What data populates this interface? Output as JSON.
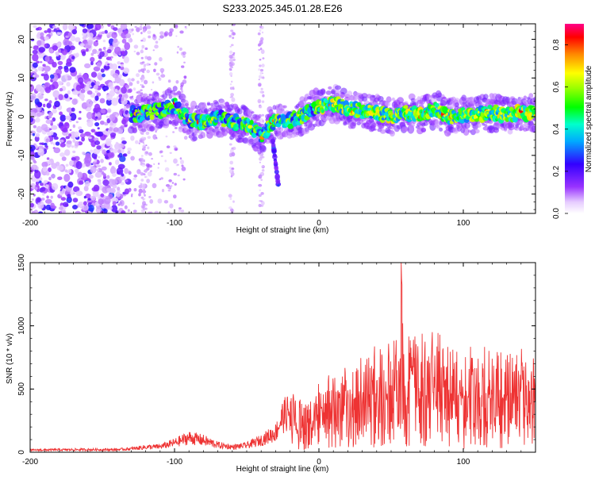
{
  "chart_data": [
    {
      "type": "heatmap",
      "title": "S233.2025.345.01.28.E26",
      "xlabel": "Height of straight line (km)",
      "ylabel": "Frequency (Hz)",
      "xlim": [
        -200,
        150
      ],
      "ylim": [
        -25,
        24
      ],
      "xticks": [
        -200,
        -100,
        0,
        100
      ],
      "yticks": [
        -20,
        -10,
        0,
        10,
        20
      ],
      "colorbar": {
        "label": "Normalized spectral amplitude",
        "range": [
          0.0,
          0.9
        ],
        "ticks": [
          0.0,
          0.2,
          0.4,
          0.6,
          0.8
        ]
      },
      "ridge": {
        "description_points_x": [
          -130,
          -110,
          -100,
          -90,
          -80,
          -70,
          -60,
          -50,
          -40,
          -30,
          -20,
          -10,
          0,
          10,
          20,
          30,
          40,
          50,
          60,
          70,
          80,
          90,
          100,
          110,
          120,
          130,
          140,
          150
        ],
        "description_points_freq": [
          0.5,
          1.5,
          3,
          -1,
          -1.5,
          0,
          -1.5,
          -2,
          -5,
          -1,
          -1,
          0.5,
          2.5,
          3.5,
          2,
          1.5,
          1,
          0,
          1,
          0.5,
          2,
          0,
          0.5,
          0.5,
          1,
          0.5,
          1,
          1
        ]
      }
    },
    {
      "type": "line",
      "xlabel": "Height of straight line (km)",
      "ylabel": "SNR (10 * v/v)",
      "xlim": [
        -200,
        150
      ],
      "ylim": [
        0,
        1500
      ],
      "xticks": [
        -200,
        -100,
        0,
        100
      ],
      "yticks": [
        0,
        500,
        1000,
        1500
      ],
      "color": "#ee3333",
      "envelope_x": [
        -200,
        -170,
        -140,
        -130,
        -120,
        -110,
        -100,
        -90,
        -80,
        -70,
        -60,
        -50,
        -40,
        -30,
        -25,
        -20,
        -15,
        -10,
        -5,
        0,
        10,
        20,
        30,
        40,
        50,
        55,
        57,
        60,
        70,
        80,
        90,
        100,
        110,
        120,
        130,
        140,
        150
      ],
      "envelope_y": [
        25,
        30,
        30,
        40,
        60,
        65,
        110,
        170,
        140,
        85,
        60,
        80,
        140,
        230,
        420,
        480,
        450,
        420,
        520,
        620,
        650,
        700,
        780,
        880,
        920,
        950,
        1500,
        940,
        960,
        990,
        850,
        900,
        950,
        820,
        800,
        850,
        850
      ]
    }
  ]
}
